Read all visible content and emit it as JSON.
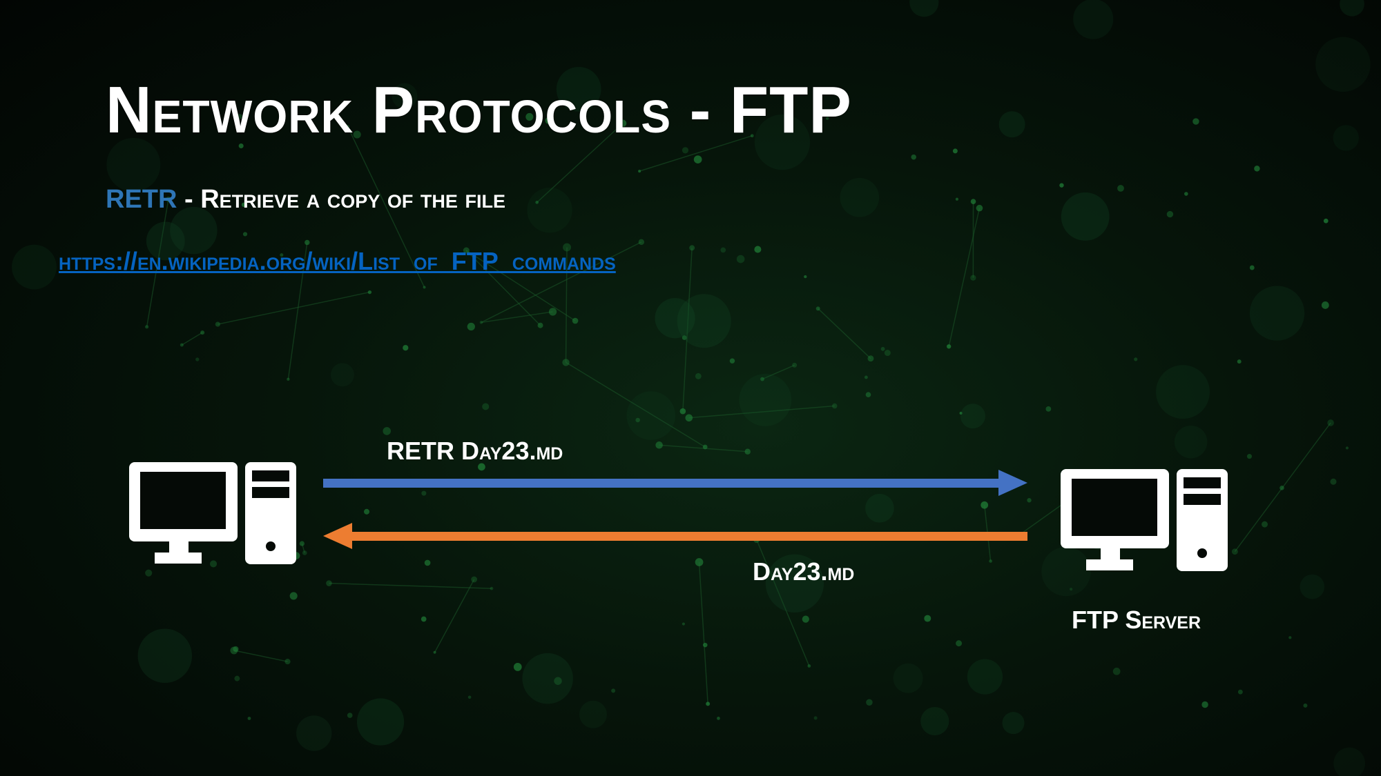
{
  "slide": {
    "title": "Network Protocols - FTP",
    "command_keyword": "RETR",
    "command_description": " - Retrieve a copy of the file",
    "link_text": "https://en.wikipedia.org/wiki/List_of_FTP_commands"
  },
  "diagram": {
    "request_label": "RETR Day23.md",
    "response_label": "Day23.md",
    "server_label": "FTP Server",
    "client_icon": "desktop-computer-icon",
    "server_icon": "desktop-computer-icon",
    "colors": {
      "keyword": "#2e75b6",
      "link": "#0563c1",
      "request_arrow": "#4472c4",
      "response_arrow": "#ed7d31"
    }
  }
}
